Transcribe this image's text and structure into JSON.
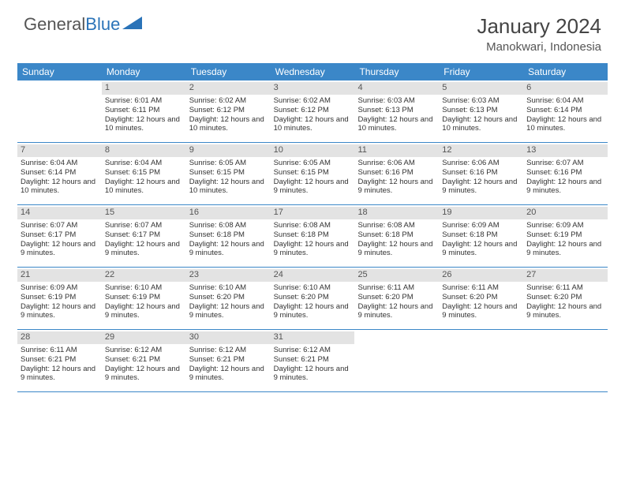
{
  "logo": {
    "text1": "General",
    "text2": "Blue",
    "icon_color": "#2a73b8"
  },
  "title": "January 2024",
  "subtitle": "Manokwari, Indonesia",
  "colors": {
    "header_bg": "#3b87c8",
    "header_text": "#ffffff",
    "daynum_bg": "#e3e3e3",
    "border": "#3b87c8",
    "text": "#333333"
  },
  "day_names": [
    "Sunday",
    "Monday",
    "Tuesday",
    "Wednesday",
    "Thursday",
    "Friday",
    "Saturday"
  ],
  "weeks": [
    [
      {
        "n": "",
        "sr": "",
        "ss": "",
        "dl": ""
      },
      {
        "n": "1",
        "sr": "Sunrise: 6:01 AM",
        "ss": "Sunset: 6:11 PM",
        "dl": "Daylight: 12 hours and 10 minutes."
      },
      {
        "n": "2",
        "sr": "Sunrise: 6:02 AM",
        "ss": "Sunset: 6:12 PM",
        "dl": "Daylight: 12 hours and 10 minutes."
      },
      {
        "n": "3",
        "sr": "Sunrise: 6:02 AM",
        "ss": "Sunset: 6:12 PM",
        "dl": "Daylight: 12 hours and 10 minutes."
      },
      {
        "n": "4",
        "sr": "Sunrise: 6:03 AM",
        "ss": "Sunset: 6:13 PM",
        "dl": "Daylight: 12 hours and 10 minutes."
      },
      {
        "n": "5",
        "sr": "Sunrise: 6:03 AM",
        "ss": "Sunset: 6:13 PM",
        "dl": "Daylight: 12 hours and 10 minutes."
      },
      {
        "n": "6",
        "sr": "Sunrise: 6:04 AM",
        "ss": "Sunset: 6:14 PM",
        "dl": "Daylight: 12 hours and 10 minutes."
      }
    ],
    [
      {
        "n": "7",
        "sr": "Sunrise: 6:04 AM",
        "ss": "Sunset: 6:14 PM",
        "dl": "Daylight: 12 hours and 10 minutes."
      },
      {
        "n": "8",
        "sr": "Sunrise: 6:04 AM",
        "ss": "Sunset: 6:15 PM",
        "dl": "Daylight: 12 hours and 10 minutes."
      },
      {
        "n": "9",
        "sr": "Sunrise: 6:05 AM",
        "ss": "Sunset: 6:15 PM",
        "dl": "Daylight: 12 hours and 10 minutes."
      },
      {
        "n": "10",
        "sr": "Sunrise: 6:05 AM",
        "ss": "Sunset: 6:15 PM",
        "dl": "Daylight: 12 hours and 9 minutes."
      },
      {
        "n": "11",
        "sr": "Sunrise: 6:06 AM",
        "ss": "Sunset: 6:16 PM",
        "dl": "Daylight: 12 hours and 9 minutes."
      },
      {
        "n": "12",
        "sr": "Sunrise: 6:06 AM",
        "ss": "Sunset: 6:16 PM",
        "dl": "Daylight: 12 hours and 9 minutes."
      },
      {
        "n": "13",
        "sr": "Sunrise: 6:07 AM",
        "ss": "Sunset: 6:16 PM",
        "dl": "Daylight: 12 hours and 9 minutes."
      }
    ],
    [
      {
        "n": "14",
        "sr": "Sunrise: 6:07 AM",
        "ss": "Sunset: 6:17 PM",
        "dl": "Daylight: 12 hours and 9 minutes."
      },
      {
        "n": "15",
        "sr": "Sunrise: 6:07 AM",
        "ss": "Sunset: 6:17 PM",
        "dl": "Daylight: 12 hours and 9 minutes."
      },
      {
        "n": "16",
        "sr": "Sunrise: 6:08 AM",
        "ss": "Sunset: 6:18 PM",
        "dl": "Daylight: 12 hours and 9 minutes."
      },
      {
        "n": "17",
        "sr": "Sunrise: 6:08 AM",
        "ss": "Sunset: 6:18 PM",
        "dl": "Daylight: 12 hours and 9 minutes."
      },
      {
        "n": "18",
        "sr": "Sunrise: 6:08 AM",
        "ss": "Sunset: 6:18 PM",
        "dl": "Daylight: 12 hours and 9 minutes."
      },
      {
        "n": "19",
        "sr": "Sunrise: 6:09 AM",
        "ss": "Sunset: 6:18 PM",
        "dl": "Daylight: 12 hours and 9 minutes."
      },
      {
        "n": "20",
        "sr": "Sunrise: 6:09 AM",
        "ss": "Sunset: 6:19 PM",
        "dl": "Daylight: 12 hours and 9 minutes."
      }
    ],
    [
      {
        "n": "21",
        "sr": "Sunrise: 6:09 AM",
        "ss": "Sunset: 6:19 PM",
        "dl": "Daylight: 12 hours and 9 minutes."
      },
      {
        "n": "22",
        "sr": "Sunrise: 6:10 AM",
        "ss": "Sunset: 6:19 PM",
        "dl": "Daylight: 12 hours and 9 minutes."
      },
      {
        "n": "23",
        "sr": "Sunrise: 6:10 AM",
        "ss": "Sunset: 6:20 PM",
        "dl": "Daylight: 12 hours and 9 minutes."
      },
      {
        "n": "24",
        "sr": "Sunrise: 6:10 AM",
        "ss": "Sunset: 6:20 PM",
        "dl": "Daylight: 12 hours and 9 minutes."
      },
      {
        "n": "25",
        "sr": "Sunrise: 6:11 AM",
        "ss": "Sunset: 6:20 PM",
        "dl": "Daylight: 12 hours and 9 minutes."
      },
      {
        "n": "26",
        "sr": "Sunrise: 6:11 AM",
        "ss": "Sunset: 6:20 PM",
        "dl": "Daylight: 12 hours and 9 minutes."
      },
      {
        "n": "27",
        "sr": "Sunrise: 6:11 AM",
        "ss": "Sunset: 6:20 PM",
        "dl": "Daylight: 12 hours and 9 minutes."
      }
    ],
    [
      {
        "n": "28",
        "sr": "Sunrise: 6:11 AM",
        "ss": "Sunset: 6:21 PM",
        "dl": "Daylight: 12 hours and 9 minutes."
      },
      {
        "n": "29",
        "sr": "Sunrise: 6:12 AM",
        "ss": "Sunset: 6:21 PM",
        "dl": "Daylight: 12 hours and 9 minutes."
      },
      {
        "n": "30",
        "sr": "Sunrise: 6:12 AM",
        "ss": "Sunset: 6:21 PM",
        "dl": "Daylight: 12 hours and 9 minutes."
      },
      {
        "n": "31",
        "sr": "Sunrise: 6:12 AM",
        "ss": "Sunset: 6:21 PM",
        "dl": "Daylight: 12 hours and 9 minutes."
      },
      {
        "n": "",
        "sr": "",
        "ss": "",
        "dl": ""
      },
      {
        "n": "",
        "sr": "",
        "ss": "",
        "dl": ""
      },
      {
        "n": "",
        "sr": "",
        "ss": "",
        "dl": ""
      }
    ]
  ]
}
